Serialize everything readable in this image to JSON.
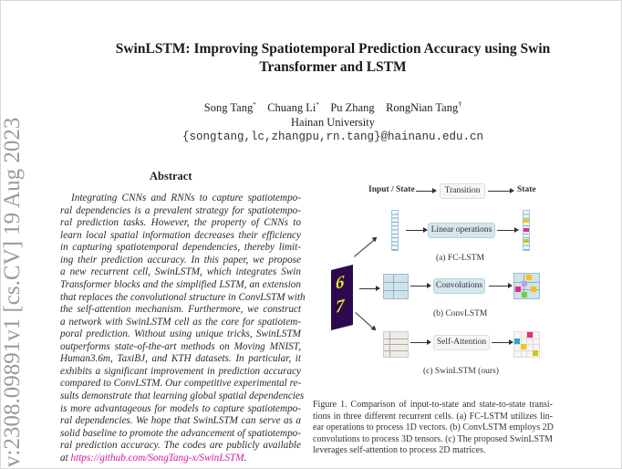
{
  "paper": {
    "title_lines": [
      "SwinLSTM: Improving Spatiotemporal Prediction Accuracy using Swin",
      "Transformer and LSTM"
    ],
    "authors": [
      {
        "name": "Song Tang",
        "mark": "*"
      },
      {
        "name": "Chuang Li",
        "mark": "*"
      },
      {
        "name": "Pu Zhang",
        "mark": ""
      },
      {
        "name": "RongNian Tang",
        "mark": "†"
      }
    ],
    "affiliation": "Hainan University",
    "email": "{songtang,lc,zhangpu,rn.tang}@hainanu.edu.cn",
    "arxiv_stamp": "v:2308.09891v1  [cs.CV]  19 Aug 2023"
  },
  "abstract": {
    "heading": "Abstract",
    "lines": [
      "Integrating CNNs and RNNs to capture spatiotempo-",
      "ral dependencies is a prevalent strategy for spatiotempo-",
      "ral prediction tasks.  However, the property of CNNs to",
      "learn local spatial information decreases their efficiency",
      "in capturing spatiotemporal dependencies, thereby limit-",
      "ing their prediction accuracy.  In this paper, we propose",
      "a new recurrent cell, SwinLSTM, which integrates Swin",
      "Transformer blocks and the simplified LSTM, an extension",
      "that replaces the convolutional structure in ConvLSTM with",
      "the self-attention mechanism.  Furthermore, we construct",
      "a network with SwinLSTM cell as the core for spatiotem-",
      "poral prediction.  Without using unique tricks, SwinLSTM",
      "outperforms state-of-the-art methods on Moving MNIST,",
      "Human3.6m, TaxiBJ, and KTH datasets.  In particular, it",
      "exhibits a significant improvement in prediction accuracy",
      "compared to ConvLSTM. Our competitive experimental re-",
      "sults demonstrate that learning global spatial dependencies",
      "is more advantageous for models to capture spatiotempo-",
      "ral dependencies. We hope that SwinLSTM can serve as a",
      "solid baseline to promote the advancement of spatiotempo-",
      "ral prediction accuracy. The codes are publicly available"
    ],
    "last_prefix": "at ",
    "link": "https://github.com/SongTang-x/SwinLSTM",
    "last_suffix": ".",
    "link_color": "#d1189a"
  },
  "figure": {
    "legend": {
      "input": "Input / State",
      "transition": "Transition",
      "state": "State"
    },
    "rows": [
      {
        "op": "Linear operations",
        "label": "(a) FC-LSTM"
      },
      {
        "op": "Convolutions",
        "label": "(b) ConvLSTM"
      },
      {
        "op": "Self-Attention",
        "label": "(c) SwinLSTM (ours)"
      }
    ],
    "digits": [
      "6",
      "7"
    ],
    "caption_lines": [
      "Figure 1.  Comparison of input-to-state and state-to-state transi-",
      "tions in three different recurrent cells.  (a) FC-LSTM utilizes lin-",
      "ear operations to process 1D vectors. (b) ConvLSTM employs 2D",
      "convolutions to process 3D tensors. (c) The proposed SwinLSTM",
      "leverages self-attention to process 2D matrices."
    ],
    "colors": {
      "op_box": "#d4e6ee",
      "image_bg": "#2b0b4e",
      "yellow": "#f2c318",
      "pink": "#e8297e",
      "olive": "#c8c81e",
      "teal": "#2aa7c9",
      "green": "#7ac943",
      "lavender": "#b9a3d6"
    }
  }
}
